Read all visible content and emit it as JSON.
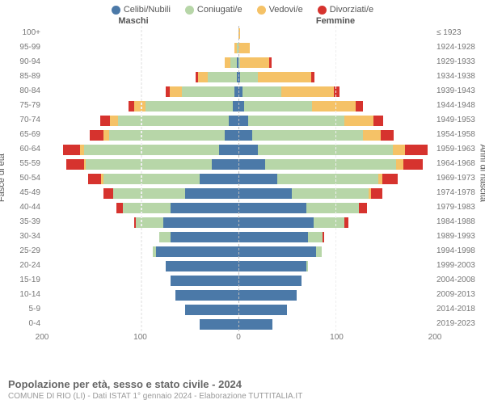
{
  "legend": [
    {
      "label": "Celibi/Nubili",
      "color": "#4b79a8"
    },
    {
      "label": "Coniugati/e",
      "color": "#b7d6a8"
    },
    {
      "label": "Vedovi/e",
      "color": "#f5c267"
    },
    {
      "label": "Divorziati/e",
      "color": "#d6332e"
    }
  ],
  "header": {
    "male": "Maschi",
    "female": "Femmine"
  },
  "axes": {
    "y_left_title": "Fasce di età",
    "y_right_title": "Anni di nascita",
    "x_ticks": [
      200,
      100,
      0,
      100,
      200
    ],
    "x_max": 200
  },
  "title": "Popolazione per età, sesso e stato civile - 2024",
  "subtitle": "COMUNE DI RIO (LI) - Dati ISTAT 1° gennaio 2024 - Elaborazione TUTTITALIA.IT",
  "colors": {
    "celibi": "#4b79a8",
    "coniugati": "#b7d6a8",
    "vedovi": "#f5c267",
    "divorziati": "#d6332e",
    "grid": "#eeeeee",
    "centerline": "#bbbbbb",
    "text": "#777777",
    "background": "#ffffff"
  },
  "rows": [
    {
      "age": "100+",
      "birth": "≤ 1923",
      "m": [
        0,
        0,
        0,
        0
      ],
      "f": [
        0,
        0,
        2,
        0
      ]
    },
    {
      "age": "95-99",
      "birth": "1924-1928",
      "m": [
        0,
        2,
        2,
        0
      ],
      "f": [
        0,
        0,
        12,
        0
      ]
    },
    {
      "age": "90-94",
      "birth": "1929-1933",
      "m": [
        2,
        6,
        6,
        0
      ],
      "f": [
        0,
        2,
        30,
        2
      ]
    },
    {
      "age": "85-89",
      "birth": "1934-1938",
      "m": [
        2,
        30,
        10,
        2
      ],
      "f": [
        2,
        18,
        55,
        4
      ]
    },
    {
      "age": "80-84",
      "birth": "1939-1943",
      "m": [
        4,
        55,
        12,
        4
      ],
      "f": [
        4,
        40,
        55,
        6
      ]
    },
    {
      "age": "75-79",
      "birth": "1944-1948",
      "m": [
        6,
        90,
        12,
        6
      ],
      "f": [
        6,
        70,
        45,
        8
      ]
    },
    {
      "age": "70-74",
      "birth": "1949-1953",
      "m": [
        10,
        115,
        8,
        10
      ],
      "f": [
        10,
        100,
        30,
        10
      ]
    },
    {
      "age": "65-69",
      "birth": "1954-1958",
      "m": [
        14,
        120,
        6,
        14
      ],
      "f": [
        14,
        115,
        18,
        14
      ]
    },
    {
      "age": "60-64",
      "birth": "1959-1963",
      "m": [
        20,
        140,
        4,
        18
      ],
      "f": [
        20,
        140,
        12,
        24
      ]
    },
    {
      "age": "55-59",
      "birth": "1964-1968",
      "m": [
        28,
        130,
        2,
        18
      ],
      "f": [
        28,
        135,
        8,
        20
      ]
    },
    {
      "age": "50-54",
      "birth": "1969-1973",
      "m": [
        40,
        100,
        2,
        14
      ],
      "f": [
        40,
        105,
        4,
        16
      ]
    },
    {
      "age": "45-49",
      "birth": "1974-1978",
      "m": [
        55,
        75,
        0,
        10
      ],
      "f": [
        55,
        80,
        2,
        12
      ]
    },
    {
      "age": "40-44",
      "birth": "1979-1983",
      "m": [
        70,
        50,
        0,
        6
      ],
      "f": [
        70,
        55,
        0,
        8
      ]
    },
    {
      "age": "35-39",
      "birth": "1984-1988",
      "m": [
        78,
        28,
        0,
        2
      ],
      "f": [
        78,
        32,
        0,
        4
      ]
    },
    {
      "age": "30-34",
      "birth": "1989-1993",
      "m": [
        70,
        12,
        0,
        0
      ],
      "f": [
        72,
        15,
        0,
        2
      ]
    },
    {
      "age": "25-29",
      "birth": "1994-1998",
      "m": [
        85,
        4,
        0,
        0
      ],
      "f": [
        80,
        6,
        0,
        0
      ]
    },
    {
      "age": "20-24",
      "birth": "1999-2003",
      "m": [
        75,
        0,
        0,
        0
      ],
      "f": [
        70,
        2,
        0,
        0
      ]
    },
    {
      "age": "15-19",
      "birth": "2004-2008",
      "m": [
        70,
        0,
        0,
        0
      ],
      "f": [
        65,
        0,
        0,
        0
      ]
    },
    {
      "age": "10-14",
      "birth": "2009-2013",
      "m": [
        65,
        0,
        0,
        0
      ],
      "f": [
        60,
        0,
        0,
        0
      ]
    },
    {
      "age": "5-9",
      "birth": "2014-2018",
      "m": [
        55,
        0,
        0,
        0
      ],
      "f": [
        50,
        0,
        0,
        0
      ]
    },
    {
      "age": "0-4",
      "birth": "2019-2023",
      "m": [
        40,
        0,
        0,
        0
      ],
      "f": [
        35,
        0,
        0,
        0
      ]
    }
  ]
}
